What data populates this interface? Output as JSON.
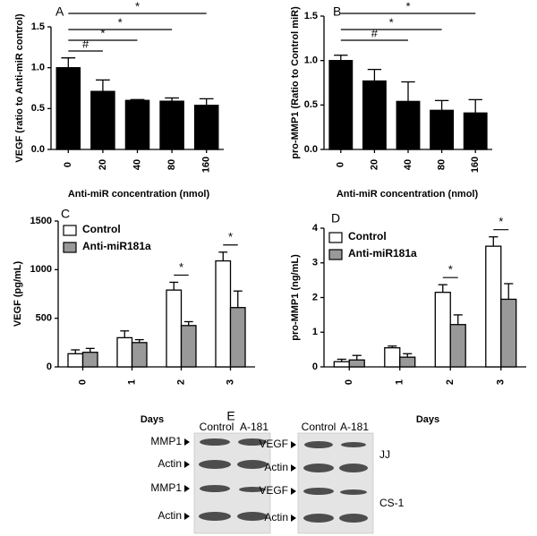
{
  "chart_data": [
    {
      "type": "bar",
      "panel": "A",
      "ylabel": "VEGF (ratio to Anti-miR control)",
      "xlabel": "Anti-miR concentration (nmol)",
      "categories": [
        "0",
        "20",
        "40",
        "80",
        "160"
      ],
      "values": [
        1.0,
        0.71,
        0.6,
        0.59,
        0.54
      ],
      "errors": [
        0.12,
        0.14,
        0.01,
        0.04,
        0.08
      ],
      "color": "#000000",
      "ylim": [
        0,
        1.5
      ],
      "yticks": [
        {
          "value": 0,
          "label": "0.0"
        },
        0.5,
        {
          "value": 1,
          "label": "1.0"
        },
        1.5
      ],
      "comparisons": [
        {
          "label": "#",
          "groups": [
            "0",
            "20"
          ]
        },
        {
          "label": "*",
          "groups": [
            "0",
            "40"
          ]
        },
        {
          "label": "*",
          "groups": [
            "0",
            "80"
          ]
        },
        {
          "label": "*",
          "groups": [
            "0",
            "160"
          ]
        }
      ]
    },
    {
      "type": "bar",
      "panel": "B",
      "ylabel": "pro-MMP1 (Ratio to Control miR)",
      "xlabel": "Anti-miR concentration (nmol)",
      "categories": [
        "0",
        "20",
        "40",
        "80",
        "160"
      ],
      "values": [
        1.0,
        0.77,
        0.54,
        0.44,
        0.41
      ],
      "errors": [
        0.06,
        0.13,
        0.22,
        0.11,
        0.15
      ],
      "color": "#000000",
      "ylim": [
        0,
        1.5
      ],
      "yticks": [
        {
          "value": 0,
          "label": "0.0"
        },
        0.5,
        {
          "value": 1,
          "label": "1.0"
        },
        1.5
      ],
      "comparisons": [
        {
          "label": "#",
          "groups": [
            "0",
            "40"
          ]
        },
        {
          "label": "*",
          "groups": [
            "0",
            "80"
          ]
        },
        {
          "label": "*",
          "groups": [
            "0",
            "160"
          ]
        }
      ]
    },
    {
      "type": "bar",
      "panel": "C",
      "ylabel": "VEGF (pg/mL)",
      "xlabel": "Days",
      "legend": "top-left",
      "categories": [
        "0",
        "1",
        "2",
        "3"
      ],
      "series": [
        {
          "name": "Control",
          "color": "#ffffff",
          "values": [
            135,
            300,
            790,
            1090
          ],
          "errors": [
            40,
            70,
            80,
            90
          ]
        },
        {
          "name": "Anti-miR181a",
          "color": "#999999",
          "values": [
            150,
            250,
            425,
            610
          ],
          "errors": [
            40,
            30,
            40,
            170
          ]
        }
      ],
      "ylim": [
        0,
        1500
      ],
      "yticks": [
        0,
        500,
        1000,
        1500
      ],
      "comparisons": [
        {
          "label": "*",
          "groups": [
            "2"
          ]
        },
        {
          "label": "*",
          "groups": [
            "3"
          ]
        }
      ]
    },
    {
      "type": "bar",
      "panel": "D",
      "ylabel": "pro-MMP1 (ng/mL)",
      "xlabel": "Days",
      "legend": "top-left",
      "categories": [
        "0",
        "1",
        "2",
        "3"
      ],
      "series": [
        {
          "name": "Control",
          "color": "#ffffff",
          "values": [
            0.15,
            0.55,
            2.15,
            3.48
          ],
          "errors": [
            0.07,
            0.05,
            0.22,
            0.27
          ]
        },
        {
          "name": "Anti-miR181a",
          "color": "#999999",
          "values": [
            0.2,
            0.28,
            1.22,
            1.95
          ],
          "errors": [
            0.13,
            0.1,
            0.28,
            0.45
          ]
        }
      ],
      "ylim": [
        0,
        4
      ],
      "yticks": [
        0,
        1,
        2,
        3,
        4
      ],
      "comparisons": [
        {
          "label": "*",
          "groups": [
            "2"
          ]
        },
        {
          "label": "*",
          "groups": [
            "3"
          ]
        }
      ]
    }
  ],
  "blot": {
    "panel": "E",
    "left": {
      "columns": [
        "Control",
        "A-181"
      ],
      "rows": [
        "MMP1",
        "Actin",
        "MMP1",
        "Actin"
      ]
    },
    "right": {
      "columns": [
        "Control",
        "A-181"
      ],
      "rows": [
        "VEGF",
        "Actin",
        "VEGF",
        "Actin"
      ]
    },
    "cell_lines": [
      "JJ",
      "CS-1"
    ]
  }
}
